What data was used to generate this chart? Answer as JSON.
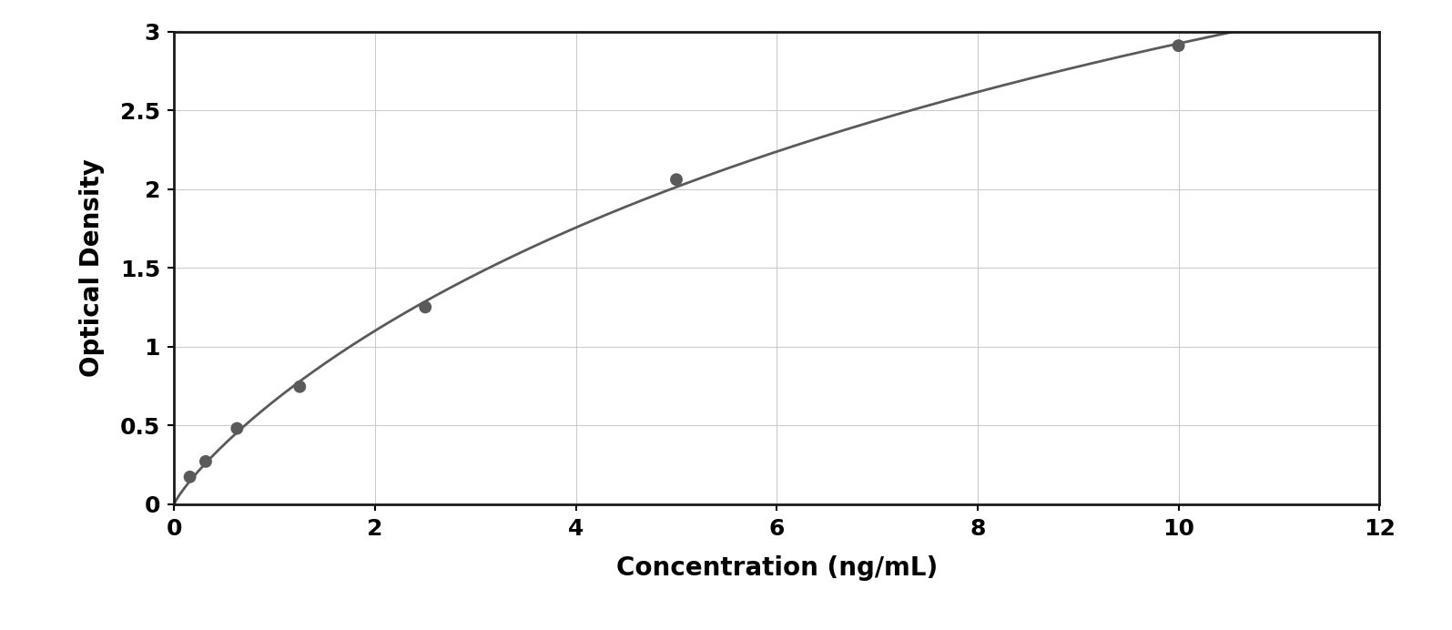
{
  "x_data": [
    0.156,
    0.313,
    0.625,
    1.25,
    2.5,
    5.0,
    10.0
  ],
  "y_data": [
    0.172,
    0.27,
    0.48,
    0.745,
    1.25,
    2.06,
    2.91
  ],
  "xlabel": "Concentration (ng/mL)",
  "ylabel": "Optical Density",
  "xlim": [
    0,
    12
  ],
  "ylim": [
    0,
    3
  ],
  "xticks": [
    0,
    2,
    4,
    6,
    8,
    10,
    12
  ],
  "yticks": [
    0,
    0.5,
    1.0,
    1.5,
    2.0,
    2.5,
    3.0
  ],
  "dot_color": "#5a5a5a",
  "line_color": "#5a5a5a",
  "background_color": "#ffffff",
  "plot_background": "#ffffff",
  "grid_color": "#cccccc",
  "border_color": "#1a1a1a",
  "xlabel_fontsize": 20,
  "ylabel_fontsize": 20,
  "tick_fontsize": 18,
  "dot_size": 100,
  "line_width": 2.0
}
